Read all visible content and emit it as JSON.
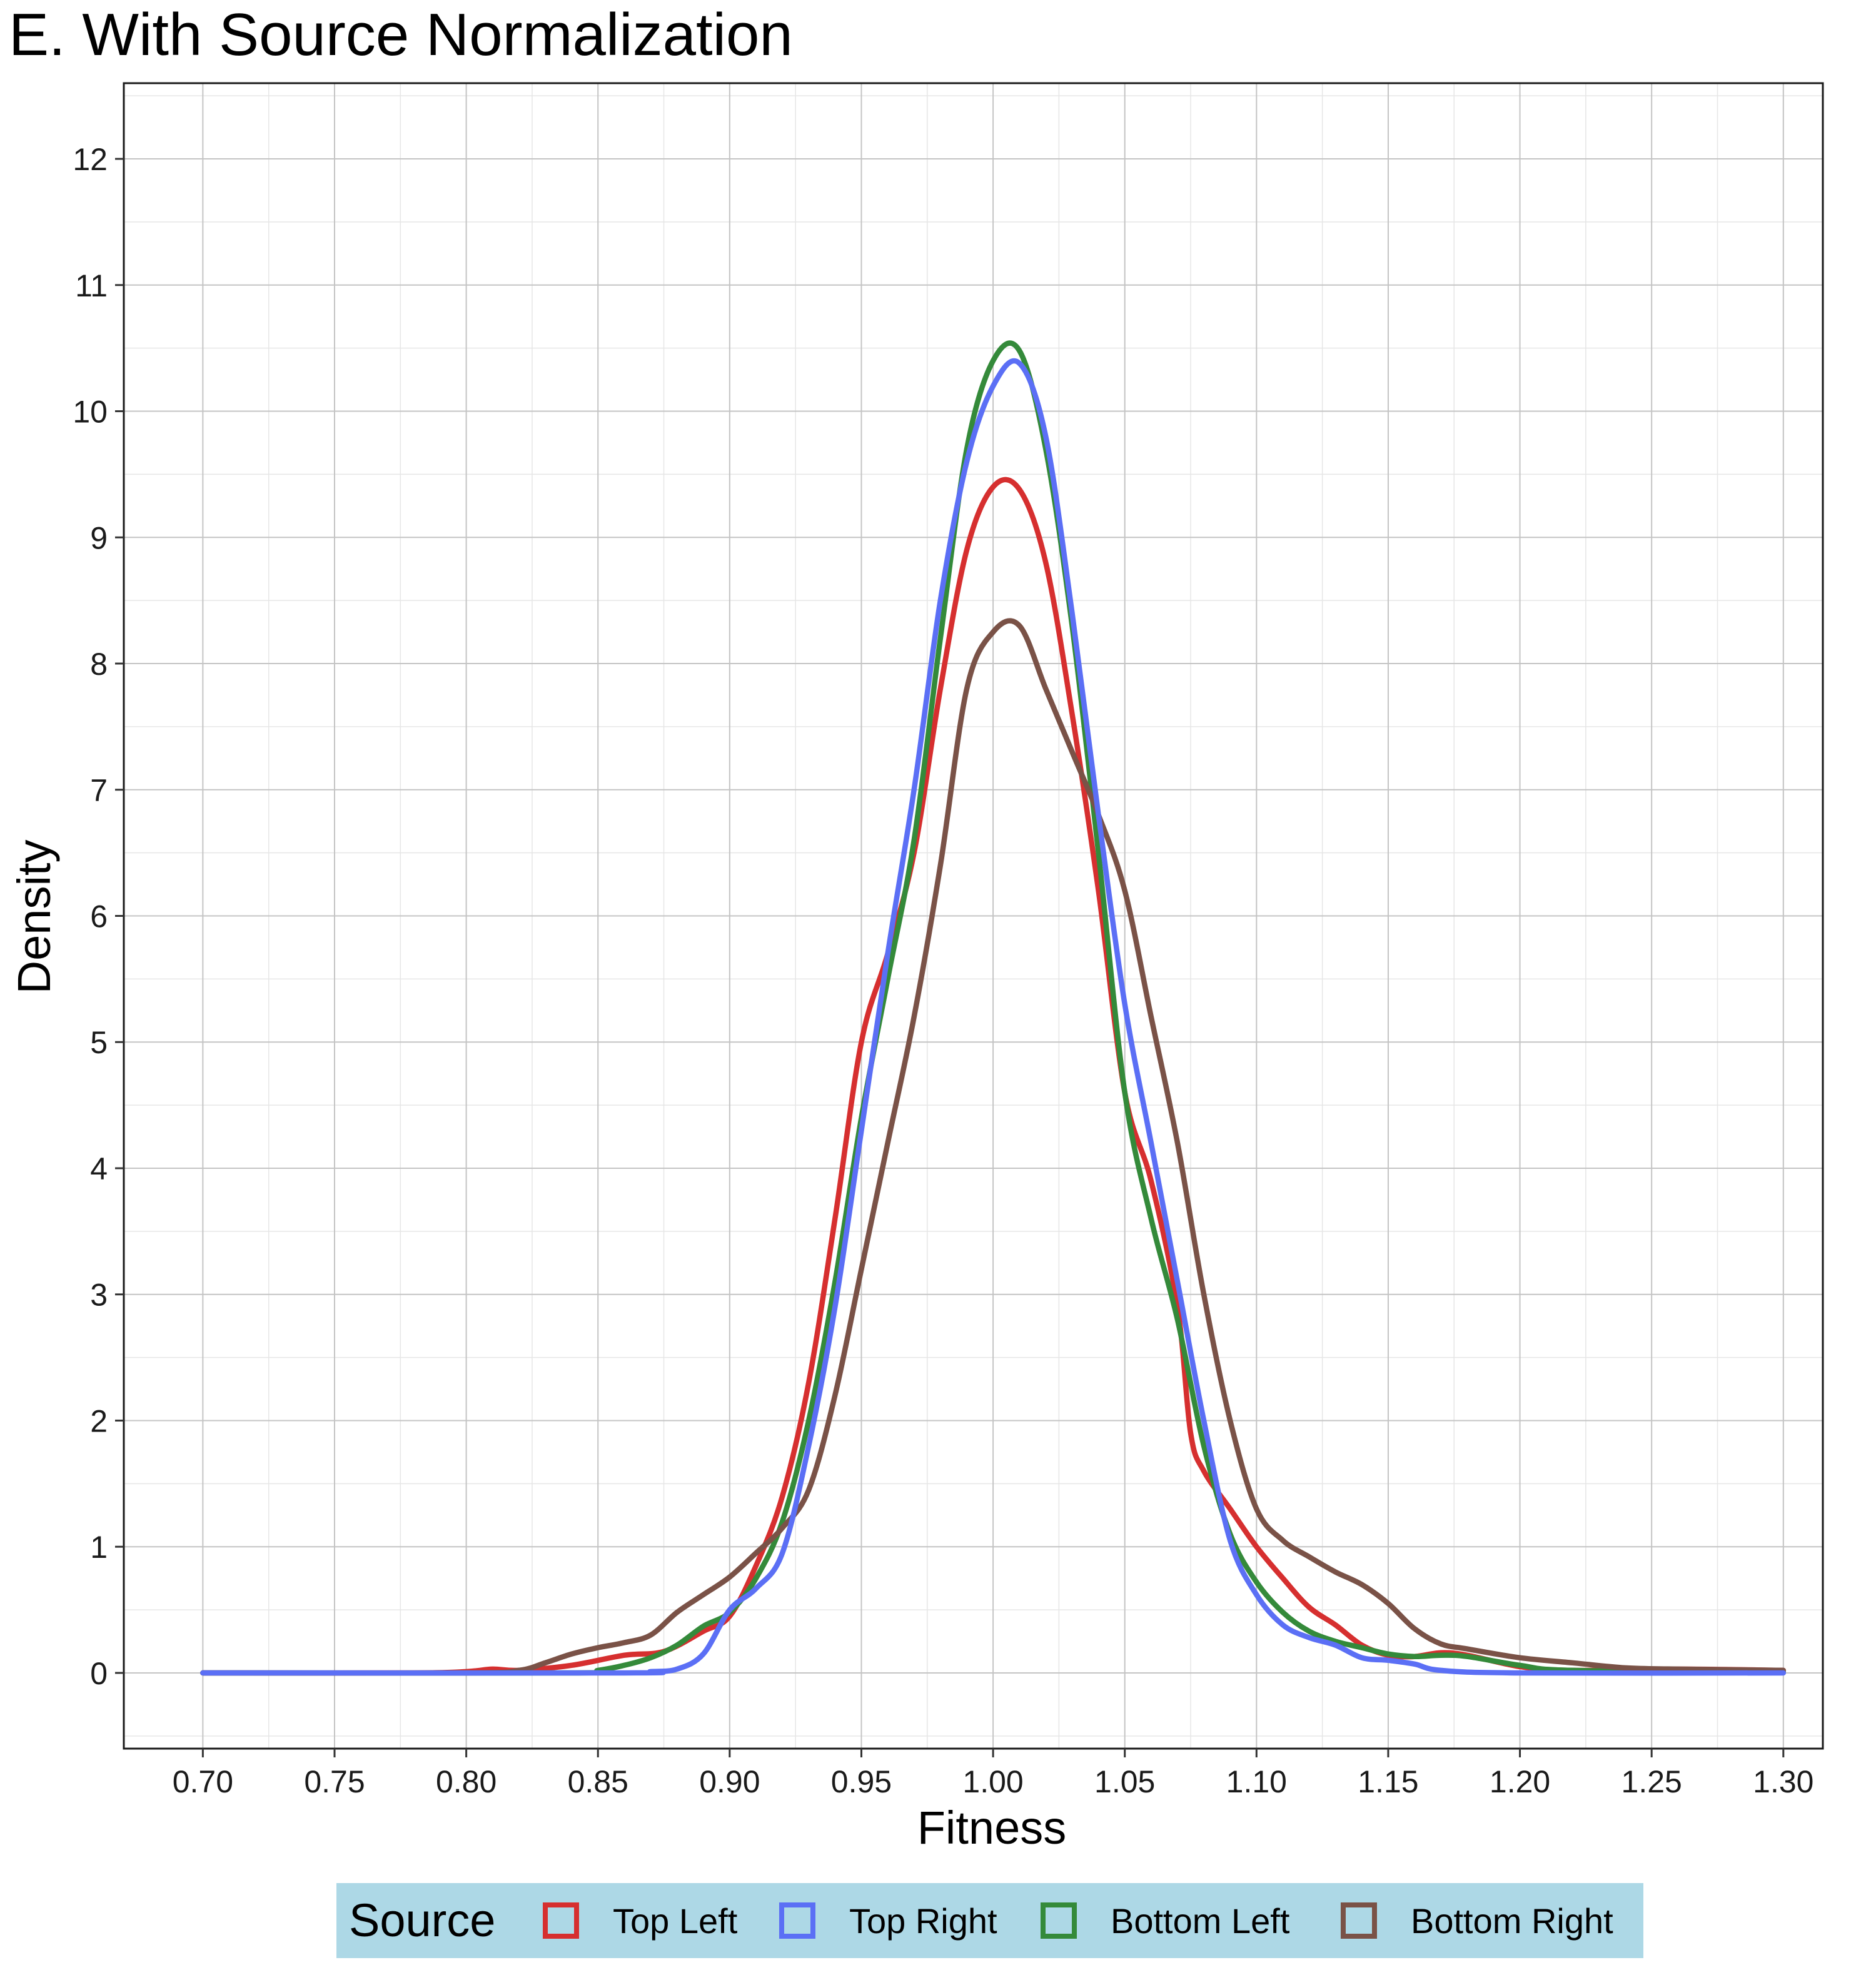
{
  "chart_data": {
    "type": "line",
    "title": "E. With Source Normalization",
    "xlabel": "Fitness",
    "ylabel": "Density",
    "xlim": [
      0.67,
      1.315
    ],
    "ylim": [
      -0.6,
      12.6
    ],
    "x_ticks": [
      "0.70",
      "0.75",
      "0.80",
      "0.85",
      "0.90",
      "0.95",
      "1.00",
      "1.05",
      "1.10",
      "1.15",
      "1.20",
      "1.25",
      "1.30"
    ],
    "y_ticks": [
      "0",
      "1",
      "2",
      "3",
      "4",
      "5",
      "6",
      "7",
      "8",
      "9",
      "10",
      "11",
      "12"
    ],
    "grid": true,
    "legend": {
      "title": "Source",
      "position": "bottom",
      "background": "#add8e6"
    },
    "series": [
      {
        "name": "Top Left",
        "color": "#d62f2f",
        "points": [
          [
            0.7,
            0
          ],
          [
            0.78,
            0
          ],
          [
            0.8,
            0.01
          ],
          [
            0.81,
            0.03
          ],
          [
            0.82,
            0.02
          ],
          [
            0.84,
            0.06
          ],
          [
            0.86,
            0.14
          ],
          [
            0.875,
            0.17
          ],
          [
            0.89,
            0.33
          ],
          [
            0.9,
            0.45
          ],
          [
            0.91,
            0.85
          ],
          [
            0.92,
            1.4
          ],
          [
            0.93,
            2.3
          ],
          [
            0.94,
            3.6
          ],
          [
            0.95,
            5.0
          ],
          [
            0.96,
            5.7
          ],
          [
            0.97,
            6.5
          ],
          [
            0.98,
            7.8
          ],
          [
            0.99,
            8.9
          ],
          [
            1.0,
            9.4
          ],
          [
            1.01,
            9.38
          ],
          [
            1.02,
            8.8
          ],
          [
            1.03,
            7.6
          ],
          [
            1.04,
            6.2
          ],
          [
            1.05,
            4.6
          ],
          [
            1.06,
            3.9
          ],
          [
            1.07,
            2.9
          ],
          [
            1.075,
            1.9
          ],
          [
            1.08,
            1.6
          ],
          [
            1.09,
            1.3
          ],
          [
            1.1,
            1.0
          ],
          [
            1.11,
            0.75
          ],
          [
            1.12,
            0.52
          ],
          [
            1.13,
            0.38
          ],
          [
            1.14,
            0.22
          ],
          [
            1.15,
            0.14
          ],
          [
            1.16,
            0.13
          ],
          [
            1.17,
            0.16
          ],
          [
            1.18,
            0.14
          ],
          [
            1.2,
            0.05
          ],
          [
            1.22,
            0.02
          ],
          [
            1.26,
            0.03
          ],
          [
            1.3,
            0.02
          ]
        ]
      },
      {
        "name": "Top Right",
        "color": "#5b6ff5",
        "points": [
          [
            0.7,
            0
          ],
          [
            0.86,
            0
          ],
          [
            0.87,
            0.01
          ],
          [
            0.88,
            0.03
          ],
          [
            0.89,
            0.15
          ],
          [
            0.9,
            0.5
          ],
          [
            0.91,
            0.67
          ],
          [
            0.92,
            0.95
          ],
          [
            0.93,
            1.8
          ],
          [
            0.94,
            2.9
          ],
          [
            0.95,
            4.3
          ],
          [
            0.96,
            5.7
          ],
          [
            0.97,
            7.0
          ],
          [
            0.98,
            8.5
          ],
          [
            0.99,
            9.6
          ],
          [
            1.0,
            10.2
          ],
          [
            1.01,
            10.38
          ],
          [
            1.02,
            9.8
          ],
          [
            1.03,
            8.4
          ],
          [
            1.04,
            6.8
          ],
          [
            1.05,
            5.3
          ],
          [
            1.06,
            4.2
          ],
          [
            1.07,
            3.1
          ],
          [
            1.08,
            2.0
          ],
          [
            1.09,
            1.05
          ],
          [
            1.1,
            0.62
          ],
          [
            1.11,
            0.38
          ],
          [
            1.12,
            0.28
          ],
          [
            1.13,
            0.22
          ],
          [
            1.14,
            0.12
          ],
          [
            1.15,
            0.1
          ],
          [
            1.16,
            0.07
          ],
          [
            1.17,
            0.02
          ],
          [
            1.2,
            0
          ],
          [
            1.3,
            0
          ]
        ]
      },
      {
        "name": "Bottom Left",
        "color": "#348a3a",
        "points": [
          [
            0.7,
            0
          ],
          [
            0.84,
            0
          ],
          [
            0.85,
            0.02
          ],
          [
            0.86,
            0.06
          ],
          [
            0.87,
            0.12
          ],
          [
            0.88,
            0.22
          ],
          [
            0.89,
            0.37
          ],
          [
            0.9,
            0.48
          ],
          [
            0.91,
            0.75
          ],
          [
            0.92,
            1.2
          ],
          [
            0.93,
            2.0
          ],
          [
            0.94,
            3.1
          ],
          [
            0.95,
            4.4
          ],
          [
            0.96,
            5.5
          ],
          [
            0.97,
            6.6
          ],
          [
            0.98,
            8.2
          ],
          [
            0.99,
            9.7
          ],
          [
            1.0,
            10.4
          ],
          [
            1.01,
            10.48
          ],
          [
            1.02,
            9.7
          ],
          [
            1.03,
            8.3
          ],
          [
            1.04,
            6.5
          ],
          [
            1.05,
            4.6
          ],
          [
            1.06,
            3.6
          ],
          [
            1.07,
            2.8
          ],
          [
            1.08,
            1.8
          ],
          [
            1.09,
            1.1
          ],
          [
            1.1,
            0.72
          ],
          [
            1.11,
            0.48
          ],
          [
            1.12,
            0.33
          ],
          [
            1.13,
            0.25
          ],
          [
            1.14,
            0.2
          ],
          [
            1.15,
            0.15
          ],
          [
            1.16,
            0.13
          ],
          [
            1.17,
            0.14
          ],
          [
            1.18,
            0.13
          ],
          [
            1.2,
            0.06
          ],
          [
            1.22,
            0.02
          ],
          [
            1.3,
            0.01
          ]
        ]
      },
      {
        "name": "Bottom Right",
        "color": "#7a5247",
        "points": [
          [
            0.7,
            0
          ],
          [
            0.8,
            0
          ],
          [
            0.82,
            0.02
          ],
          [
            0.83,
            0.08
          ],
          [
            0.84,
            0.15
          ],
          [
            0.85,
            0.2
          ],
          [
            0.86,
            0.24
          ],
          [
            0.87,
            0.3
          ],
          [
            0.88,
            0.48
          ],
          [
            0.89,
            0.62
          ],
          [
            0.9,
            0.76
          ],
          [
            0.91,
            0.95
          ],
          [
            0.92,
            1.15
          ],
          [
            0.93,
            1.45
          ],
          [
            0.94,
            2.2
          ],
          [
            0.95,
            3.2
          ],
          [
            0.96,
            4.2
          ],
          [
            0.97,
            5.2
          ],
          [
            0.98,
            6.4
          ],
          [
            0.99,
            7.8
          ],
          [
            1.0,
            8.25
          ],
          [
            1.01,
            8.3
          ],
          [
            1.02,
            7.8
          ],
          [
            1.03,
            7.3
          ],
          [
            1.04,
            6.8
          ],
          [
            1.05,
            6.2
          ],
          [
            1.06,
            5.2
          ],
          [
            1.07,
            4.2
          ],
          [
            1.08,
            3.0
          ],
          [
            1.09,
            2.0
          ],
          [
            1.1,
            1.3
          ],
          [
            1.11,
            1.05
          ],
          [
            1.12,
            0.92
          ],
          [
            1.13,
            0.8
          ],
          [
            1.14,
            0.7
          ],
          [
            1.15,
            0.55
          ],
          [
            1.16,
            0.35
          ],
          [
            1.17,
            0.23
          ],
          [
            1.18,
            0.19
          ],
          [
            1.2,
            0.12
          ],
          [
            1.22,
            0.08
          ],
          [
            1.24,
            0.04
          ],
          [
            1.26,
            0.03
          ],
          [
            1.3,
            0.02
          ]
        ]
      }
    ]
  }
}
